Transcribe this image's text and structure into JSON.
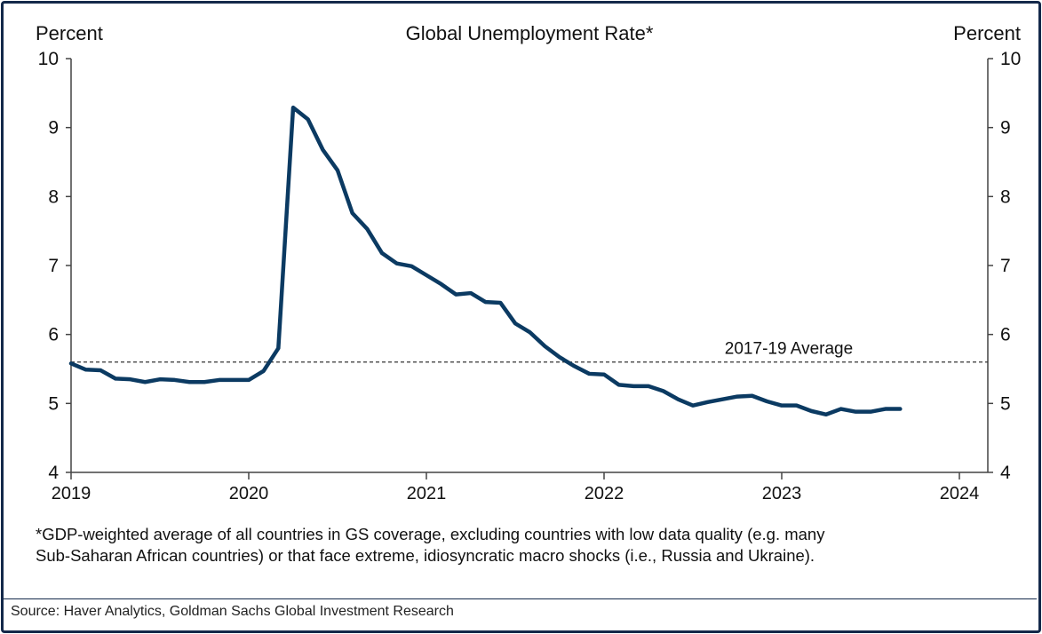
{
  "chart_data": {
    "type": "line",
    "title": "Global Unemployment Rate*",
    "ylabel_left": "Percent",
    "ylabel_right": "Percent",
    "xlabel": "",
    "ylim": [
      4,
      10
    ],
    "xlim": [
      2019,
      2024.16
    ],
    "yticks": [
      "4",
      "5",
      "6",
      "7",
      "8",
      "9",
      "10"
    ],
    "xticks": [
      "2019",
      "2020",
      "2021",
      "2022",
      "2023",
      "2024"
    ],
    "grid": false,
    "series": [
      {
        "name": "Global Unemployment Rate",
        "color": "#0b3a62",
        "start": "2019-01",
        "frequency": "monthly",
        "values": [
          5.58,
          5.49,
          5.48,
          5.36,
          5.35,
          5.31,
          5.35,
          5.34,
          5.31,
          5.31,
          5.34,
          5.34,
          5.34,
          5.47,
          5.8,
          9.29,
          9.12,
          8.68,
          8.38,
          7.76,
          7.53,
          7.18,
          7.03,
          6.99,
          6.86,
          6.73,
          6.58,
          6.6,
          6.47,
          6.46,
          6.16,
          6.03,
          5.83,
          5.67,
          5.54,
          5.43,
          5.42,
          5.27,
          5.25,
          5.25,
          5.18,
          5.06,
          4.97,
          5.02,
          5.06,
          5.1,
          5.11,
          5.03,
          4.97,
          4.97,
          4.89,
          4.84,
          4.92,
          4.88,
          4.88,
          4.92,
          4.92
        ]
      }
    ],
    "reference_line": {
      "value": 5.6,
      "label": "2017-19 Average",
      "style": "dashed"
    }
  },
  "footnote": {
    "line1": "*GDP-weighted average of all countries in GS coverage, excluding countries with low data quality (e.g. many",
    "line2": "Sub-Saharan African countries) or that face extreme, idiosyncratic macro shocks (i.e., Russia and Ukraine)."
  },
  "source": "Source: Haver Analytics, Goldman Sachs Global Investment Research"
}
